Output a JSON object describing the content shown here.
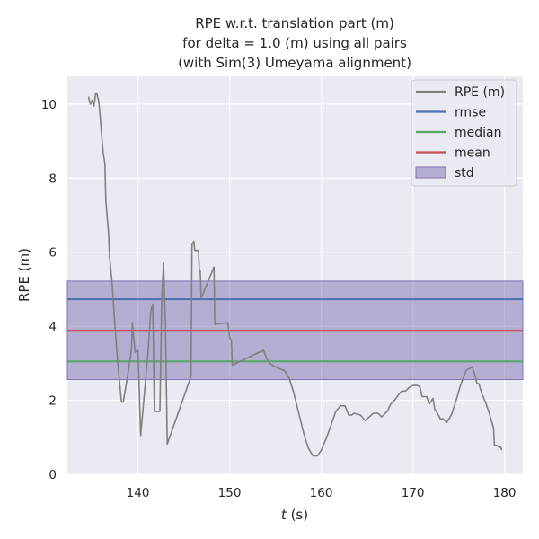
{
  "chart_data": {
    "type": "line",
    "title": [
      "RPE w.r.t. translation part (m)",
      "for delta = 1.0 (m) using all pairs",
      "(with Sim(3) Umeyama alignment)"
    ],
    "xlabel_var": "t",
    "xlabel_unit": "(s)",
    "ylabel": "RPE (m)",
    "xlim": [
      132.3,
      182.0
    ],
    "ylim": [
      0,
      10.75
    ],
    "xticks": [
      140,
      150,
      160,
      170,
      180
    ],
    "yticks": [
      0,
      2,
      4,
      6,
      8,
      10
    ],
    "grid": true,
    "legend_position": "top-right",
    "colors": {
      "background": "#eaeaf2",
      "grid": "#ffffff",
      "rpe": "#808080",
      "rmse": "#4c72b0",
      "median": "#55a868",
      "mean": "#c44e52",
      "std": "#8172b2"
    },
    "stats": {
      "rmse": 4.73,
      "median": 3.05,
      "mean": 3.88,
      "std_band": [
        2.56,
        5.22
      ]
    },
    "legend": [
      {
        "label": "RPE (m)",
        "kind": "line",
        "color": "#808080"
      },
      {
        "label": "rmse",
        "kind": "line",
        "color": "#4c72b0"
      },
      {
        "label": "median",
        "kind": "line",
        "color": "#55a868"
      },
      {
        "label": "mean",
        "kind": "line",
        "color": "#c44e52"
      },
      {
        "label": "std",
        "kind": "patch",
        "color": "#8172b2"
      }
    ],
    "series": [
      {
        "name": "RPE (m)",
        "x": [
          134.6,
          134.8,
          135.0,
          135.2,
          135.4,
          135.5,
          135.7,
          135.8,
          136.0,
          136.2,
          136.4,
          136.5,
          136.8,
          136.9,
          137.2,
          137.5,
          137.8,
          138.2,
          138.4,
          138.9,
          139.2,
          139.3,
          139.4,
          139.5,
          139.7,
          140.0,
          140.1,
          140.3,
          141.1,
          141.4,
          141.6,
          141.7,
          141.8,
          142.4,
          142.6,
          142.8,
          143.0,
          143.2,
          145.8,
          145.9,
          146.1,
          146.2,
          146.6,
          146.7,
          146.8,
          146.9,
          148.3,
          148.4,
          149.8,
          150.0,
          150.2,
          150.3,
          153.7,
          154.1,
          154.4,
          155.0,
          156.0,
          156.5,
          157.0,
          157.6,
          158.1,
          158.6,
          159.1,
          159.6,
          160.0,
          160.6,
          161.1,
          161.6,
          162.1,
          162.6,
          163.0,
          163.3,
          163.6,
          164.3,
          164.8,
          165.0,
          165.7,
          166.2,
          166.6,
          166.8,
          167.2,
          167.6,
          168.0,
          168.3,
          168.6,
          168.8,
          169.2,
          169.6,
          170.0,
          170.5,
          170.8,
          171.0,
          171.5,
          171.8,
          172.2,
          172.4,
          172.8,
          173.0,
          173.3,
          173.7,
          174.2,
          174.6,
          175.2,
          175.8,
          176.1,
          176.5,
          176.8,
          177.0,
          177.2,
          177.5,
          178.0,
          178.4,
          178.8,
          178.9,
          179.2,
          179.4,
          179.6,
          179.7
        ],
        "y": [
          10.2,
          10.0,
          10.1,
          9.95,
          10.3,
          10.3,
          10.1,
          9.9,
          9.3,
          8.7,
          8.4,
          7.4,
          6.5,
          5.9,
          5.1,
          4.0,
          3.0,
          1.95,
          1.95,
          2.7,
          3.2,
          3.4,
          4.1,
          3.8,
          3.3,
          3.35,
          2.6,
          1.05,
          3.3,
          4.4,
          4.6,
          3.4,
          1.7,
          1.7,
          4.8,
          5.7,
          4.0,
          0.82,
          2.65,
          6.2,
          6.3,
          6.05,
          6.05,
          5.5,
          5.5,
          4.75,
          5.6,
          4.05,
          4.1,
          3.7,
          3.6,
          2.95,
          3.35,
          3.1,
          3.0,
          2.9,
          2.8,
          2.6,
          2.2,
          1.6,
          1.1,
          0.7,
          0.5,
          0.5,
          0.65,
          1.0,
          1.35,
          1.7,
          1.85,
          1.85,
          1.6,
          1.6,
          1.65,
          1.6,
          1.45,
          1.5,
          1.65,
          1.65,
          1.55,
          1.6,
          1.7,
          1.9,
          2.0,
          2.1,
          2.2,
          2.25,
          2.25,
          2.35,
          2.4,
          2.4,
          2.35,
          2.1,
          2.1,
          1.9,
          2.05,
          1.75,
          1.6,
          1.5,
          1.5,
          1.4,
          1.6,
          1.9,
          2.4,
          2.8,
          2.85,
          2.9,
          2.65,
          2.45,
          2.45,
          2.2,
          1.9,
          1.6,
          1.25,
          0.78,
          0.78,
          0.73,
          0.73,
          0.65
        ]
      }
    ]
  }
}
